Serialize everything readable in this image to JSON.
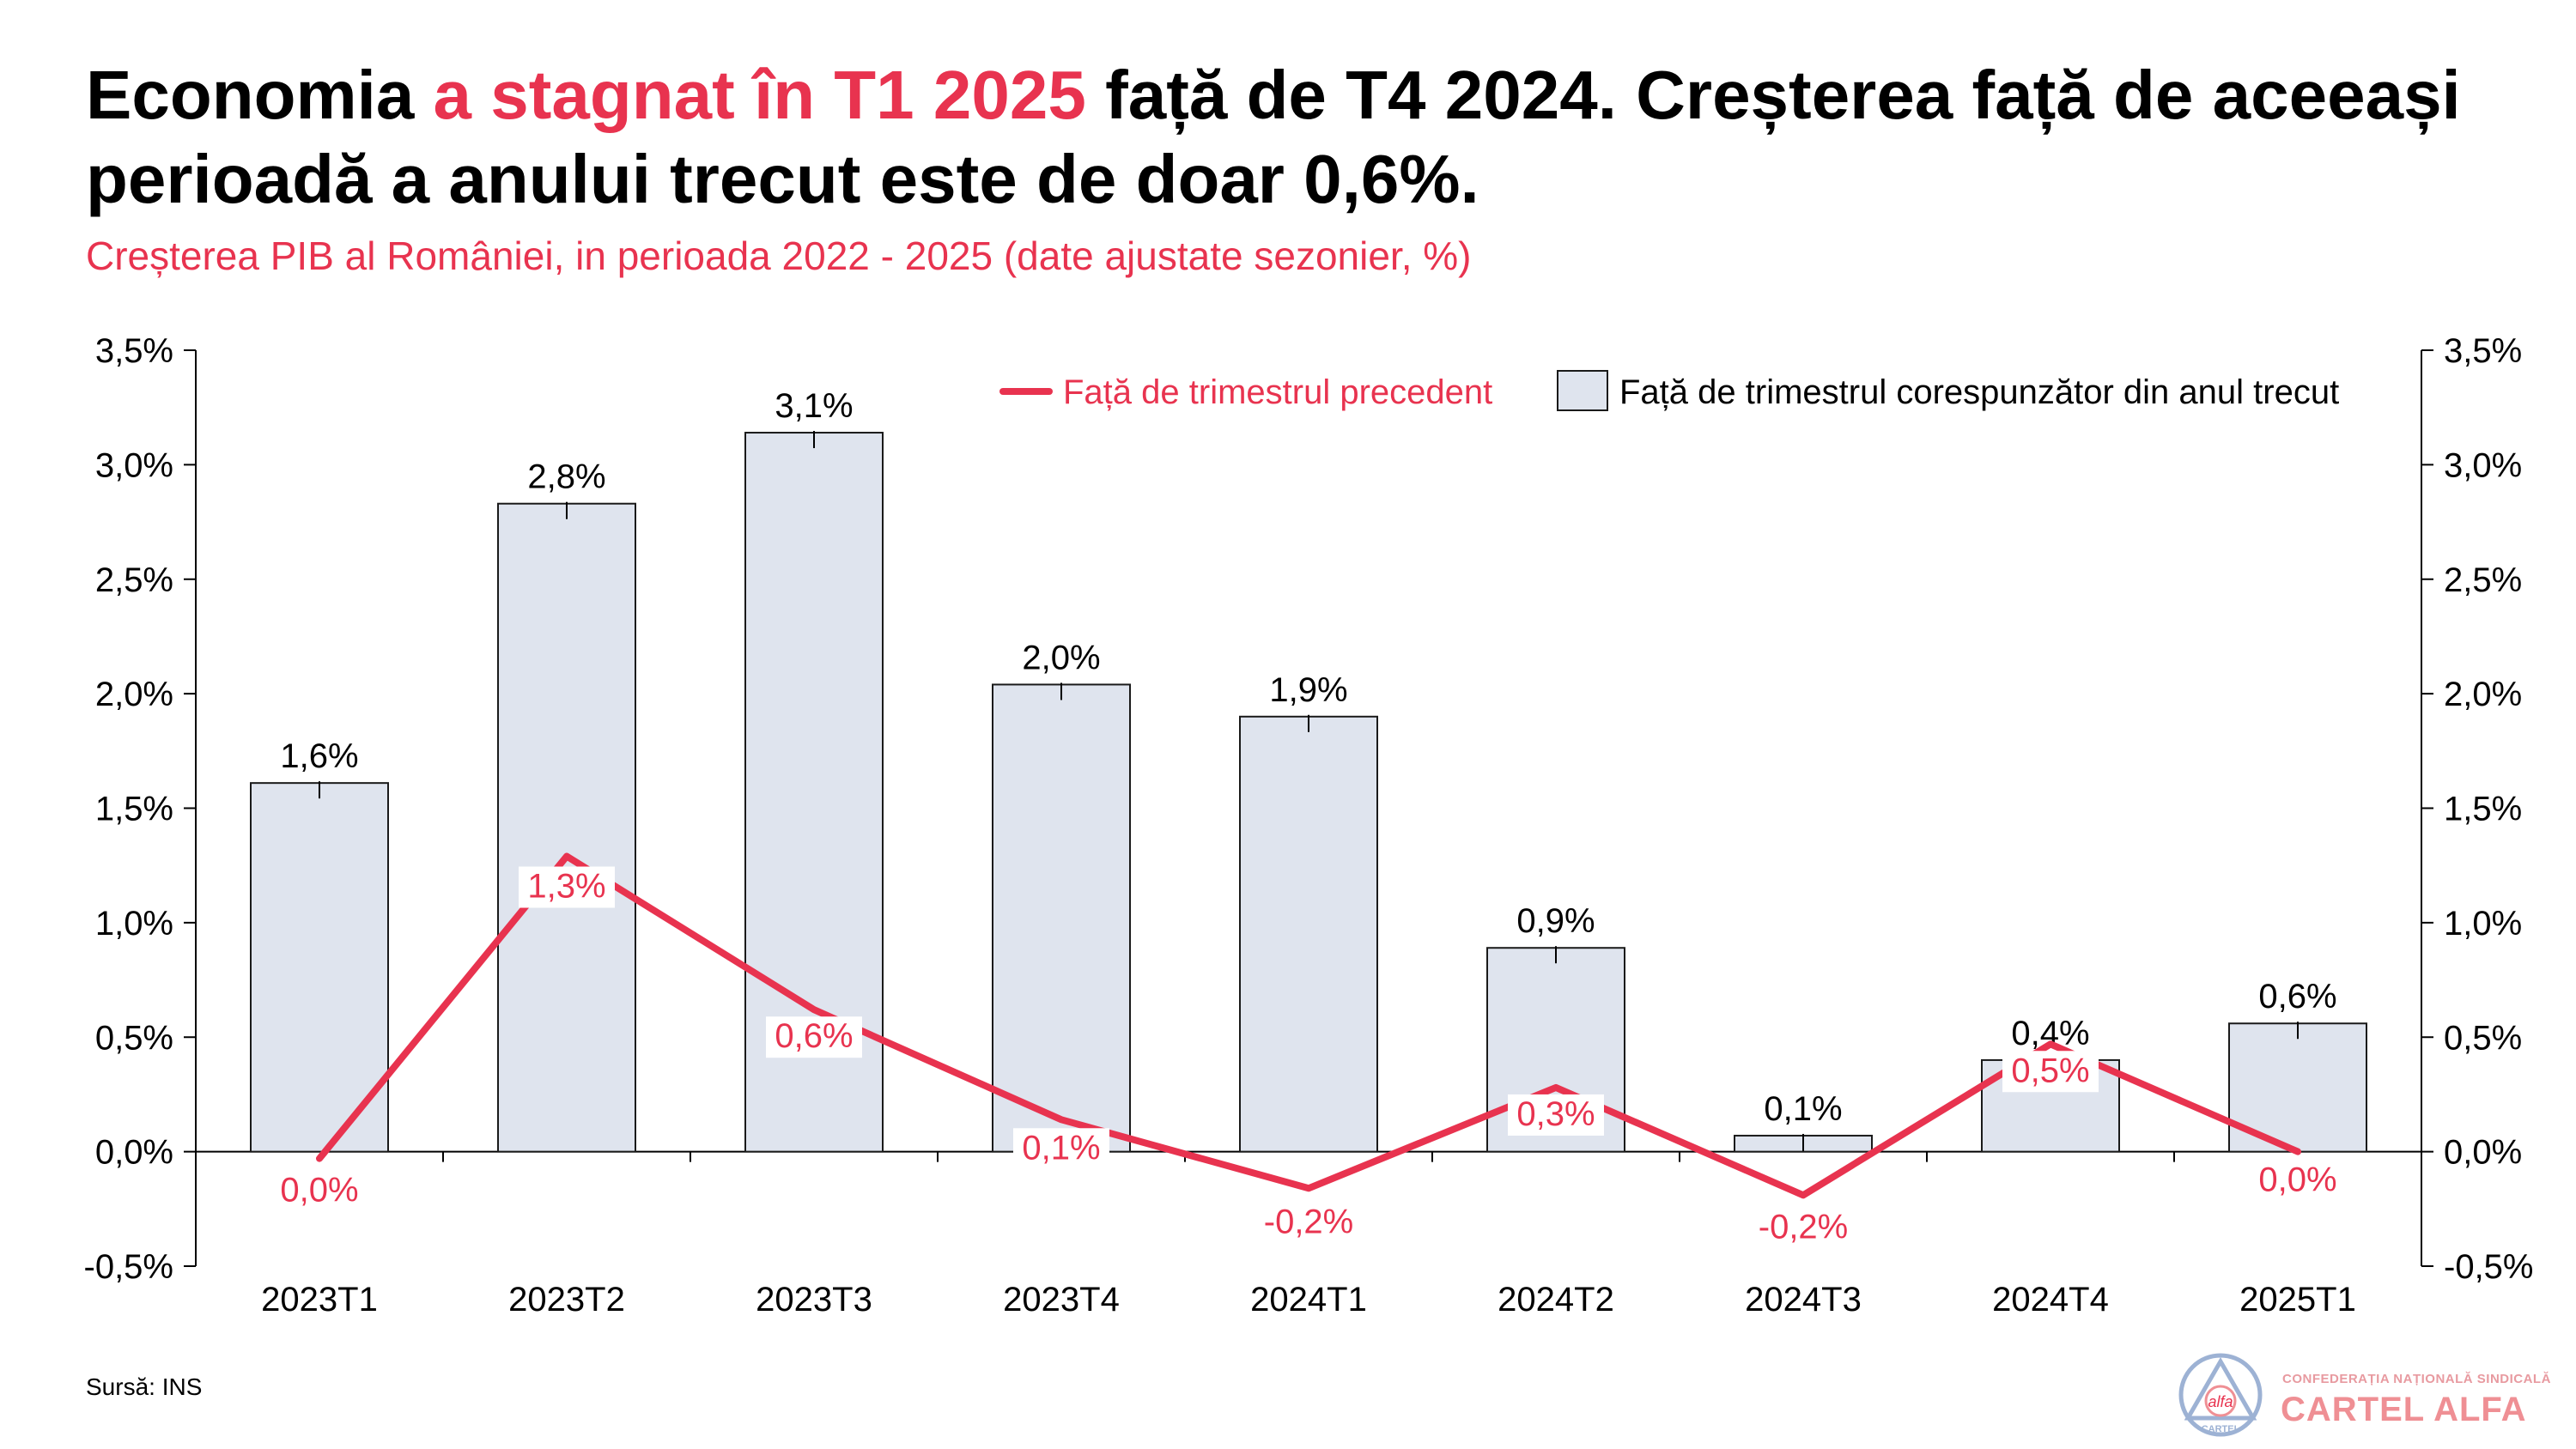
{
  "header": {
    "title_part1": "Economia ",
    "title_highlight": "a stagnat în T1 2025",
    "title_part2": " față de T4 2024. Creșterea față de aceeași perioadă a anului trecut este de doar 0,6%.",
    "subtitle": "Creșterea PIB al României, in perioada 2022 - 2025 (date ajustate sezonier, %)"
  },
  "footer": {
    "source": "Sursă: INS",
    "logo_top": "CONFEDERAȚIA NAȚIONALĂ SINDICALĂ",
    "logo_brand": "CARTEL ALFA",
    "logo_emblem_top": "alfa",
    "logo_emblem_bottom": "CARTEL"
  },
  "colors": {
    "accent": "#e8334f",
    "bar_fill": "#dfe4ee",
    "bar_stroke": "#1a1a1a"
  },
  "chart_data": {
    "type": "bar",
    "categories": [
      "2023T1",
      "2023T2",
      "2023T3",
      "2023T4",
      "2024T1",
      "2024T2",
      "2024T3",
      "2024T4",
      "2025T1"
    ],
    "series": [
      {
        "name": "Față de trimestrul corespunzător din anul trecut",
        "type": "bar",
        "values": [
          1.6,
          2.8,
          3.1,
          2.0,
          1.9,
          0.9,
          0.1,
          0.4,
          0.6
        ],
        "plot_values": [
          1.61,
          2.83,
          3.14,
          2.04,
          1.9,
          0.89,
          0.07,
          0.4,
          0.56
        ],
        "labels": [
          "1,6%",
          "2,8%",
          "3,1%",
          "2,0%",
          "1,9%",
          "0,9%",
          "0,1%",
          "0,4%",
          "0,6%"
        ]
      },
      {
        "name": "Față de trimestrul precedent",
        "type": "line",
        "values": [
          0.0,
          1.3,
          0.6,
          0.1,
          -0.2,
          0.3,
          -0.2,
          0.5,
          0.0
        ],
        "plot_values": [
          -0.03,
          1.29,
          0.62,
          0.14,
          -0.16,
          0.28,
          -0.19,
          0.47,
          0.0
        ],
        "labels": [
          "0,0%",
          "1,3%",
          "0,6%",
          "0,1%",
          "-0,2%",
          "0,3%",
          "-0,2%",
          "0,5%",
          "0,0%"
        ]
      }
    ],
    "y_ticks": [
      -0.5,
      0.0,
      0.5,
      1.0,
      1.5,
      2.0,
      2.5,
      3.0,
      3.5
    ],
    "y_tick_labels": [
      "-0,5%",
      "0,0%",
      "0,5%",
      "1,0%",
      "1,5%",
      "2,0%",
      "2,5%",
      "3,0%",
      "3,5%"
    ],
    "ylim": [
      -0.5,
      3.5
    ],
    "secondary_axis": true,
    "grid": false,
    "legend_position": "top-right"
  }
}
